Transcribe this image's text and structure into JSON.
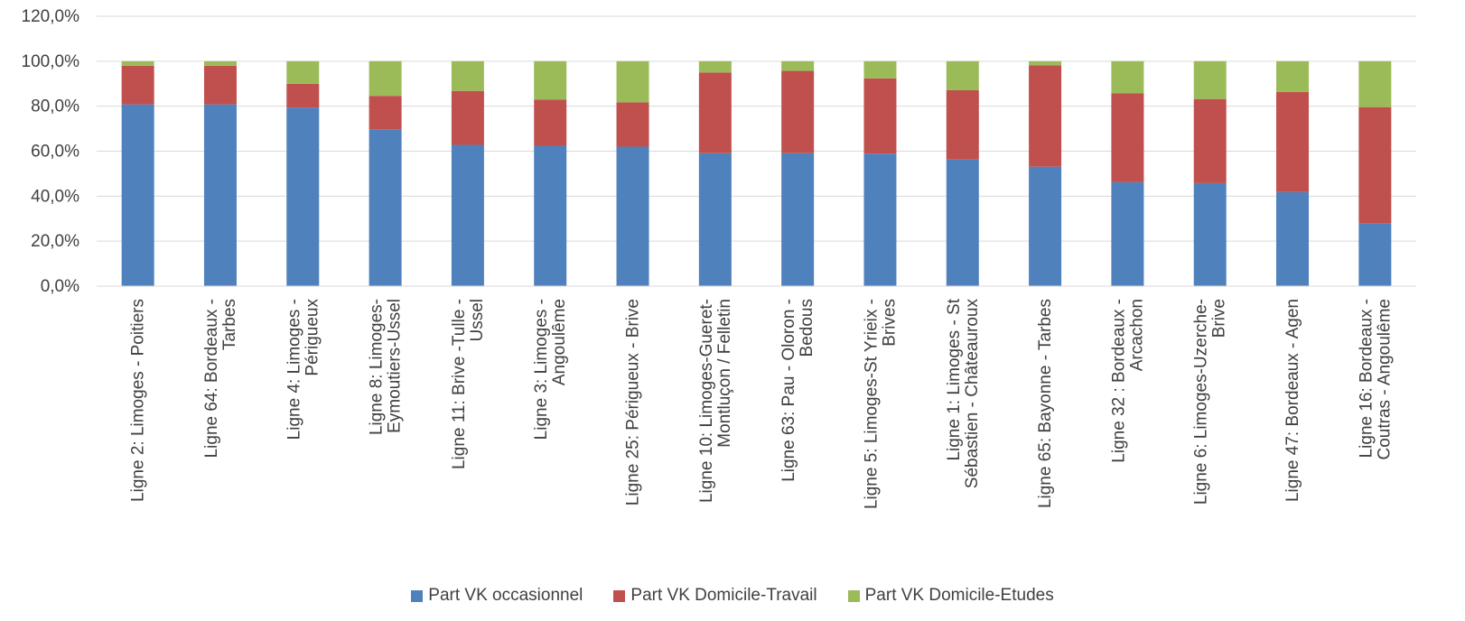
{
  "chart_data": {
    "type": "bar",
    "stacked": true,
    "grid": true,
    "legend_position": "bottom",
    "ylim": [
      0,
      120
    ],
    "yticks": [
      0,
      20,
      40,
      60,
      80,
      100,
      120
    ],
    "ytick_labels": [
      "0,0%",
      "20,0%",
      "40,0%",
      "60,0%",
      "80,0%",
      "100,0%",
      "120,0%"
    ],
    "categories": [
      [
        "Ligne 2: Limoges - Poitiers"
      ],
      [
        "Ligne 64: Bordeaux -",
        "Tarbes"
      ],
      [
        "Ligne 4: Limoges -",
        "Périgueux"
      ],
      [
        "Ligne 8: Limoges-",
        "Eymoutiers-Ussel"
      ],
      [
        "Ligne 11: Brive -Tulle -",
        "Ussel"
      ],
      [
        "Ligne 3: Limoges -",
        "Angoulême"
      ],
      [
        "Ligne 25: Périgueux - Brive"
      ],
      [
        "Ligne 10: Limoges-Gueret-",
        "Montluçon / Felletin"
      ],
      [
        "Ligne 63: Pau - Oloron -",
        "Bedous"
      ],
      [
        "Ligne 5: Limoges-St Yrieix -",
        "Brives"
      ],
      [
        "Ligne 1: Limoges - St",
        "Sébastien - Châteauroux"
      ],
      [
        "Ligne 65: Bayonne - Tarbes"
      ],
      [
        "Ligne 32 : Bordeaux -",
        "Arcachon"
      ],
      [
        "Ligne 6: Limoges-Uzerche-",
        "Brive"
      ],
      [
        "Ligne 47: Bordeaux - Agen"
      ],
      [
        "Ligne 16: Bordeaux -",
        "Coutras - Angoulême"
      ]
    ],
    "series": [
      {
        "name": "Part VK occasionnel",
        "color": "#4F81BD",
        "values": [
          80.8,
          80.8,
          79.4,
          69.7,
          62.8,
          62.4,
          62.0,
          59.1,
          59.1,
          58.9,
          56.3,
          53.1,
          46.2,
          45.8,
          41.8,
          27.8
        ]
      },
      {
        "name": "Part VK Domicile-Travail",
        "color": "#C0504D",
        "values": [
          17.2,
          17.2,
          10.6,
          14.9,
          24.0,
          20.6,
          19.7,
          35.9,
          36.6,
          33.5,
          30.8,
          45.1,
          39.5,
          37.4,
          44.5,
          51.8
        ]
      },
      {
        "name": "Part VK Domicile-Etudes",
        "color": "#9BBB59",
        "values": [
          2.0,
          2.0,
          10.0,
          15.4,
          13.2,
          17.0,
          18.3,
          5.0,
          4.3,
          7.6,
          12.9,
          1.8,
          14.3,
          16.8,
          13.7,
          20.4
        ]
      }
    ]
  }
}
